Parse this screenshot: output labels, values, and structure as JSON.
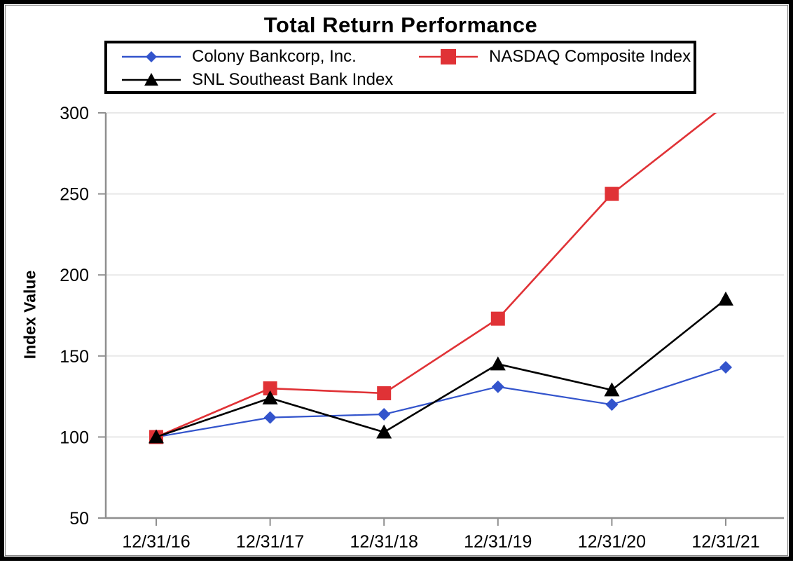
{
  "chart_data": {
    "type": "line",
    "title": "Total Return Performance",
    "ylabel": "Index Value",
    "xlabel": "",
    "categories": [
      "12/31/16",
      "12/31/17",
      "12/31/18",
      "12/31/19",
      "12/31/20",
      "12/31/21"
    ],
    "series": [
      {
        "name": "Colony Bankcorp, Inc.",
        "color": "#3354cc",
        "marker": "diamond",
        "values": [
          100,
          112,
          114,
          131,
          120,
          143
        ]
      },
      {
        "name": "NASDAQ Composite Index",
        "color": "#e03236",
        "marker": "square",
        "values": [
          100,
          130,
          127,
          173,
          250,
          305
        ]
      },
      {
        "name": "SNL Southeast Bank Index",
        "color": "#000000",
        "marker": "triangle",
        "values": [
          100,
          124,
          103,
          145,
          129,
          185
        ]
      }
    ],
    "ylim": [
      50,
      300
    ],
    "y_ticks": [
      50,
      100,
      150,
      200,
      250,
      300
    ],
    "grid": true,
    "legend_position": "top",
    "axis_color": "#8f8f8f",
    "gridline_color": "#e8e8e8"
  }
}
